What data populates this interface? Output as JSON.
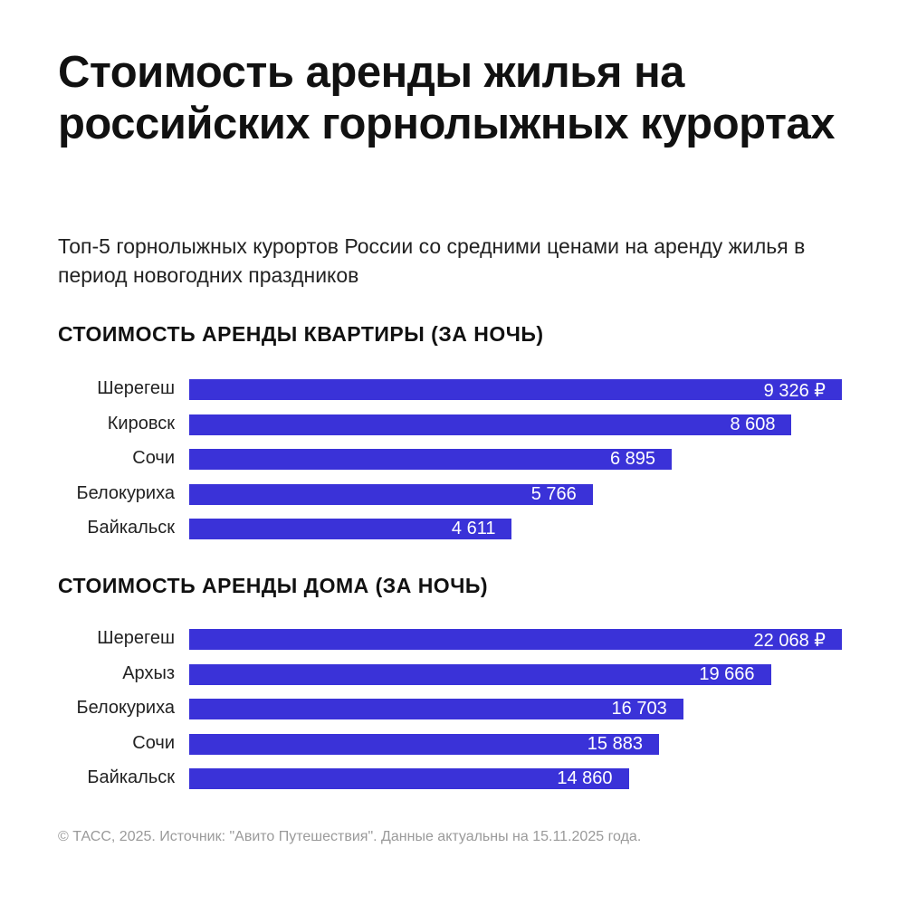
{
  "title": "Стоимость аренды жилья на российских горнолыжных курортах",
  "subtitle": "Топ-5 горнолыжных курортов России со средними ценами на аренду жилья в период новогодних праздников",
  "footer": "© ТАСС, 2025. Источник: \"Авито Путешествия\". Данные актуальны на 15.11.2025 года.",
  "bar_color": "#3a32d8",
  "chart_data": [
    {
      "type": "bar",
      "orientation": "horizontal",
      "title": "СТОИМОСТЬ АРЕНДЫ КВАРТИРЫ (ЗА НОЧЬ)",
      "unit": "₽",
      "categories": [
        "Шерегеш",
        "Кировск",
        "Сочи",
        "Белокуриха",
        "Байкальск"
      ],
      "values": [
        9326,
        8608,
        6895,
        5766,
        4611
      ],
      "labels": [
        "9 326 ₽",
        "8 608",
        "6 895",
        "5 766",
        "4 611"
      ]
    },
    {
      "type": "bar",
      "orientation": "horizontal",
      "title": "СТОИМОСТЬ АРЕНДЫ ДОМА (ЗА НОЧЬ)",
      "unit": "₽",
      "categories": [
        "Шерегеш",
        "Архыз",
        "Белокуриха",
        "Сочи",
        "Байкальск"
      ],
      "values": [
        22068,
        19666,
        16703,
        15883,
        14860
      ],
      "labels": [
        "22 068 ₽",
        "19 666",
        "16 703",
        "15 883",
        "14 860"
      ]
    }
  ]
}
